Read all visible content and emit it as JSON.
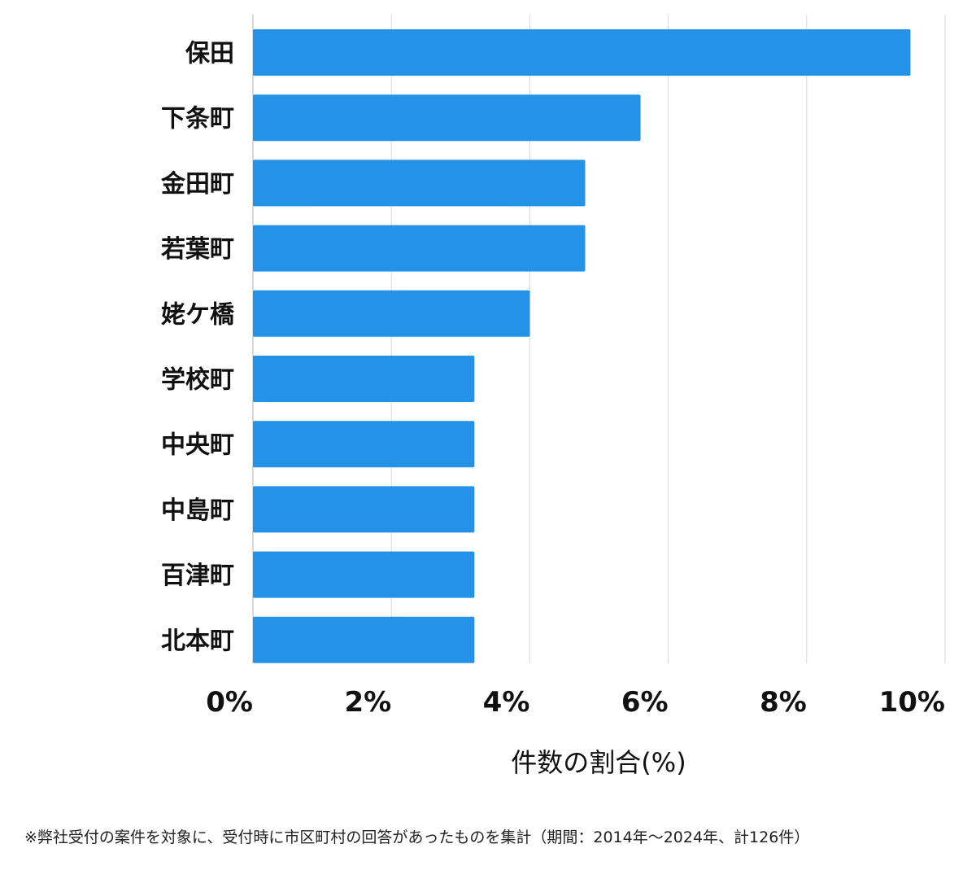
{
  "chart_data": {
    "type": "bar",
    "orientation": "horizontal",
    "categories": [
      "保田",
      "下条町",
      "金田町",
      "若葉町",
      "姥ケ橋",
      "学校町",
      "中央町",
      "中島町",
      "百津町",
      "北本町"
    ],
    "values": [
      9.5,
      5.6,
      4.8,
      4.8,
      4.0,
      3.2,
      3.2,
      3.2,
      3.2,
      3.2
    ],
    "xlim": [
      0,
      10
    ],
    "ticks": [
      0,
      2,
      4,
      6,
      8,
      10
    ],
    "tick_labels": [
      "0%",
      "2%",
      "4%",
      "6%",
      "8%",
      "10%"
    ],
    "xlabel": "件数の割合(%)",
    "ylabel": "",
    "grid": true,
    "bar_color": "#2492e6"
  },
  "footnote": "※弊社受付の案件を対象に、受付時に市区町村の回答があったものを集計（期間：2014年～2024年、計126件）"
}
